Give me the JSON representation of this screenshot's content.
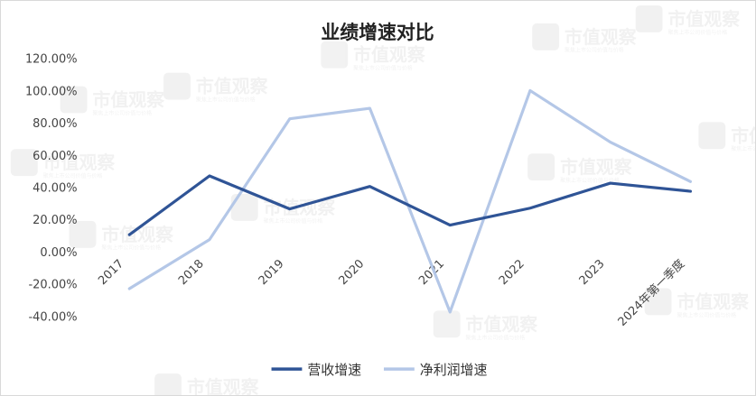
{
  "chart_data": {
    "type": "line",
    "title": "业绩增速对比",
    "categories": [
      "2017",
      "2018",
      "2019",
      "2020",
      "2021",
      "2022",
      "2023",
      "2024年第一季度"
    ],
    "series": [
      {
        "name": "营收增速",
        "color": "#2f5496",
        "values": [
          10.5,
          47.0,
          26.5,
          40.5,
          16.5,
          27.0,
          42.5,
          37.5
        ]
      },
      {
        "name": "净利润增速",
        "color": "#b4c7e7",
        "values": [
          -23.0,
          7.5,
          82.5,
          89.0,
          -37.5,
          100.0,
          68.0,
          43.5
        ]
      }
    ],
    "yticks": [
      "120.00%",
      "100.00%",
      "80.00%",
      "60.00%",
      "40.00%",
      "20.00%",
      "0.00%",
      "-20.00%",
      "-40.00%"
    ],
    "ylim": [
      -40,
      120
    ],
    "y_unit": "%",
    "grid": false,
    "legend_position": "bottom"
  },
  "watermark": {
    "text": "市值观察",
    "subtext": "聚焦上市公司价值与价格"
  }
}
